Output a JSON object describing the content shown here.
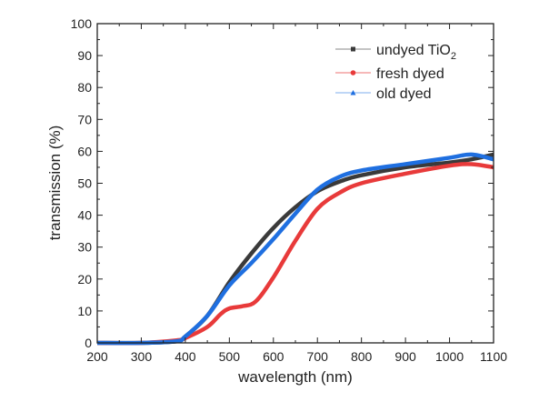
{
  "chart_data": {
    "type": "line",
    "title": "",
    "xlabel": "wavelength (nm)",
    "ylabel": "transmission (%)",
    "xlim": [
      200,
      1100
    ],
    "ylim": [
      0,
      100
    ],
    "xticks": [
      200,
      300,
      400,
      500,
      600,
      700,
      800,
      900,
      1000,
      1100
    ],
    "yticks": [
      0,
      10,
      20,
      30,
      40,
      50,
      60,
      70,
      80,
      90,
      100
    ],
    "grid": false,
    "legend_position": "top-right",
    "series": [
      {
        "name": "undyed TiO",
        "subscript": "2",
        "color": "#3a3a3a",
        "marker": "square",
        "x": [
          200,
          300,
          380,
          400,
          450,
          500,
          550,
          600,
          650,
          700,
          750,
          800,
          900,
          1000,
          1050,
          1100
        ],
        "y": [
          0,
          0,
          0.5,
          2,
          8.5,
          19,
          28,
          36,
          42.5,
          47.5,
          50.5,
          52.5,
          55,
          56.5,
          57.5,
          59
        ]
      },
      {
        "name": "fresh dyed",
        "color": "#e83a3a",
        "marker": "circle",
        "x": [
          200,
          300,
          380,
          400,
          450,
          480,
          500,
          530,
          560,
          600,
          650,
          700,
          750,
          800,
          900,
          1000,
          1050,
          1100
        ],
        "y": [
          0,
          0,
          0.8,
          1.5,
          5,
          9,
          10.8,
          11.5,
          13,
          20.5,
          32,
          42,
          47,
          50,
          53,
          55.5,
          56,
          55
        ]
      },
      {
        "name": "old dyed",
        "color": "#1f6fe0",
        "marker": "triangle",
        "x": [
          200,
          300,
          380,
          400,
          450,
          500,
          550,
          600,
          650,
          700,
          750,
          800,
          900,
          1000,
          1050,
          1100
        ],
        "y": [
          0,
          0,
          0.5,
          2,
          8.5,
          18,
          25,
          32.5,
          40.5,
          48,
          52,
          54,
          56,
          58,
          59,
          57.5
        ]
      }
    ]
  }
}
